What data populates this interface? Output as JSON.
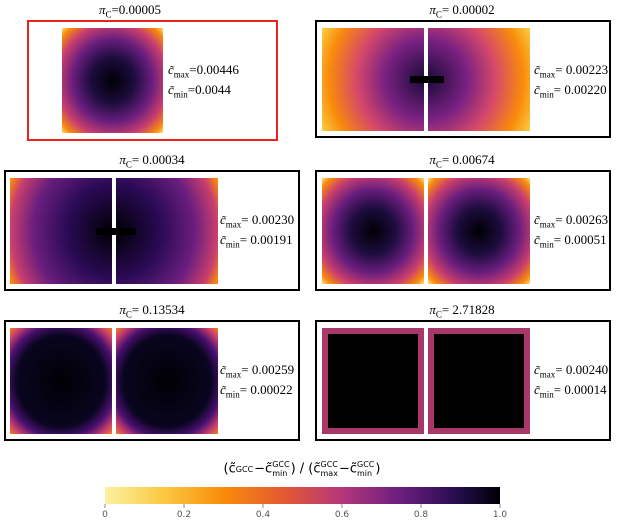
{
  "panels": [
    {
      "symbol": "π",
      "subscript": "C",
      "value": "=0.00005",
      "c_symbol": "c̃",
      "max_sub": "max",
      "max_value": "=0.00446",
      "min_sub": "min",
      "min_value": "=0.0044"
    },
    {
      "symbol": "π",
      "subscript": "C",
      "value": "= 0.00002",
      "c_symbol": "c̃",
      "max_sub": "max",
      "max_value": "= 0.00223",
      "min_sub": "min",
      "min_value": "= 0.00220"
    },
    {
      "symbol": "π",
      "subscript": "C",
      "value": "= 0.00034",
      "c_symbol": "c̃",
      "max_sub": "max",
      "max_value": "= 0.00230",
      "min_sub": "min",
      "min_value": "= 0.00191"
    },
    {
      "symbol": "π",
      "subscript": "C",
      "value": "= 0.00674",
      "c_symbol": "c̃",
      "max_sub": "max",
      "max_value": "= 0.00263",
      "min_sub": "min",
      "min_value": "= 0.00051"
    },
    {
      "symbol": "π",
      "subscript": "C",
      "value": "= 0.13534",
      "c_symbol": "c̃",
      "max_sub": "max",
      "max_value": "= 0.00259",
      "min_sub": "min",
      "min_value": "= 0.00022"
    },
    {
      "symbol": "π",
      "subscript": "C",
      "value": "= 2.71828",
      "c_symbol": "c̃",
      "max_sub": "max",
      "max_value": "= 0.00240",
      "min_sub": "min",
      "min_value": "= 0.00014"
    }
  ],
  "colorbar": {
    "label": [
      {
        "text": "(c̃",
        "sup": "GCC"
      },
      {
        "text": "−c̃",
        "sup": "GCC",
        "sub": "min"
      },
      {
        "text": ") / (c̃",
        "sup": "GCC",
        "sub": "max"
      },
      {
        "text": "−c̃",
        "sup": "GCC",
        "sub": "min"
      },
      {
        "text": ")"
      }
    ],
    "ticks": [
      0,
      0.2,
      0.4,
      0.6,
      0.8,
      {
        "value": 1,
        "label": "1.0"
      }
    ]
  }
}
